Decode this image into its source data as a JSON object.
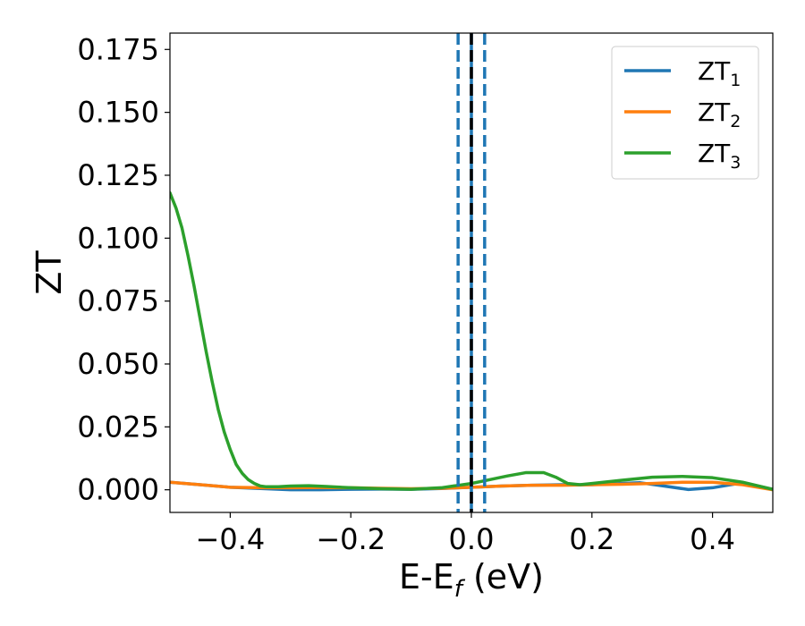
{
  "chart_data": {
    "type": "line",
    "xlabel": {
      "main": "E-E",
      "sub": "f",
      "rest": " (eV)"
    },
    "ylabel": "ZT",
    "xlim": [
      -0.5,
      0.5
    ],
    "ylim": [
      -0.009,
      0.1815
    ],
    "xticks": [
      -0.4,
      -0.2,
      0.0,
      0.2,
      0.4
    ],
    "xtick_labels": [
      "−0.4",
      "−0.2",
      "0.0",
      "0.2",
      "0.4"
    ],
    "yticks": [
      0.0,
      0.025,
      0.05,
      0.075,
      0.1,
      0.125,
      0.15,
      0.175
    ],
    "ytick_labels": [
      "0.000",
      "0.025",
      "0.050",
      "0.075",
      "0.100",
      "0.125",
      "0.150",
      "0.175"
    ],
    "grid": false,
    "legend_position": "top-right",
    "vlines": [
      {
        "x": -0.022,
        "style": "dashed",
        "color": "#1f77b4"
      },
      {
        "x": 0.022,
        "style": "dashed",
        "color": "#1f77b4"
      },
      {
        "x": 0.0,
        "style": "solid",
        "color": "#1f77b4"
      },
      {
        "x": 0.0,
        "style": "dashed",
        "color": "#000000"
      }
    ],
    "series": [
      {
        "name": "ZT",
        "sub": "1",
        "color": "#1f77b4",
        "x": [
          -0.5,
          -0.45,
          -0.4,
          -0.35,
          -0.3,
          -0.25,
          -0.2,
          -0.15,
          -0.1,
          -0.05,
          0.0,
          0.05,
          0.1,
          0.15,
          0.2,
          0.25,
          0.28,
          0.32,
          0.36,
          0.4,
          0.45,
          0.5
        ],
        "values": [
          0.003,
          0.002,
          0.001,
          0.0005,
          0.0,
          0.0,
          0.0002,
          0.0003,
          0.0002,
          0.0005,
          0.001,
          0.0015,
          0.0018,
          0.002,
          0.002,
          0.0025,
          0.0028,
          0.0015,
          0.0001,
          0.0008,
          0.0028,
          0.0002
        ]
      },
      {
        "name": "ZT",
        "sub": "2",
        "color": "#ff7f0e",
        "x": [
          -0.5,
          -0.45,
          -0.4,
          -0.35,
          -0.3,
          -0.25,
          -0.2,
          -0.15,
          -0.1,
          -0.05,
          0.0,
          0.05,
          0.1,
          0.15,
          0.2,
          0.25,
          0.3,
          0.35,
          0.4,
          0.45,
          0.5
        ],
        "values": [
          0.003,
          0.002,
          0.001,
          0.0008,
          0.0008,
          0.0009,
          0.0008,
          0.0006,
          0.0004,
          0.0006,
          0.001,
          0.0015,
          0.0018,
          0.0018,
          0.002,
          0.0022,
          0.0025,
          0.003,
          0.003,
          0.002,
          0.0
        ]
      },
      {
        "name": "ZT",
        "sub": "3",
        "color": "#2ca02c",
        "x": [
          -0.5,
          -0.49,
          -0.48,
          -0.47,
          -0.46,
          -0.45,
          -0.44,
          -0.43,
          -0.42,
          -0.41,
          -0.4,
          -0.39,
          -0.38,
          -0.37,
          -0.36,
          -0.35,
          -0.34,
          -0.32,
          -0.3,
          -0.27,
          -0.24,
          -0.2,
          -0.15,
          -0.1,
          -0.05,
          0.0,
          0.03,
          0.06,
          0.09,
          0.12,
          0.14,
          0.16,
          0.18,
          0.2,
          0.25,
          0.3,
          0.35,
          0.4,
          0.45,
          0.5
        ],
        "values": [
          0.118,
          0.112,
          0.104,
          0.093,
          0.081,
          0.068,
          0.055,
          0.043,
          0.032,
          0.023,
          0.016,
          0.01,
          0.0065,
          0.004,
          0.0025,
          0.0015,
          0.0012,
          0.0012,
          0.0015,
          0.0016,
          0.0013,
          0.0008,
          0.0004,
          0.0002,
          0.0008,
          0.0025,
          0.004,
          0.0055,
          0.0068,
          0.0068,
          0.005,
          0.0025,
          0.002,
          0.0025,
          0.0038,
          0.005,
          0.0053,
          0.0048,
          0.003,
          0.0002
        ]
      }
    ]
  }
}
